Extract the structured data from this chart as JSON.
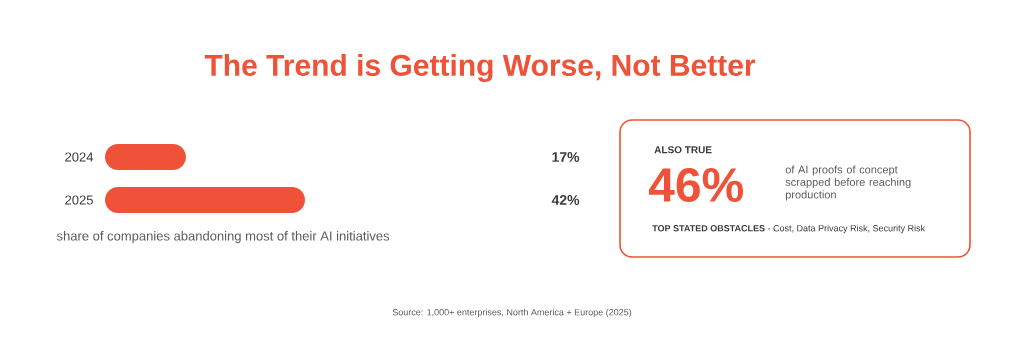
{
  "chart_data": [
    {
      "type": "bar",
      "orientation": "horizontal",
      "title": "The Trend is Getting Worse, Not Better",
      "xlabel": "share of companies abandoning most of their AI initiatives",
      "categories": [
        "2024",
        "2025"
      ],
      "values": [
        17,
        42
      ],
      "value_labels": [
        "17%",
        "42%"
      ],
      "color": "#ef5238",
      "annotations": [
        "Source: 1,000+ enterprises, North America + Europe (2025)"
      ]
    },
    {
      "type": "other",
      "title": "ALSO TRUE",
      "annotations": [
        "46%",
        "of AI proofs of concept scrapped before reaching production",
        "**TOP STATED OBSTACLES** - Cost, Data Privacy Risk, Security Risk"
      ]
    }
  ]
}
